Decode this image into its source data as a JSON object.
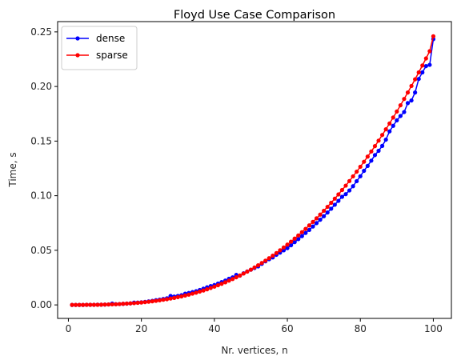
{
  "chart_data": {
    "type": "line",
    "title": "Floyd Use Case Comparison",
    "xlabel": "Nr. vertices, n",
    "ylabel": "Time, s",
    "xlim": [
      -2.95,
      104.95
    ],
    "ylim": [
      -0.01236,
      0.25942
    ],
    "xticks": [
      0,
      20,
      40,
      60,
      80,
      100
    ],
    "yticks": [
      0.0,
      0.05,
      0.1,
      0.15,
      0.2,
      0.25
    ],
    "xtick_labels": [
      "0",
      "20",
      "40",
      "60",
      "80",
      "100"
    ],
    "ytick_labels": [
      "0.00",
      "0.05",
      "0.10",
      "0.15",
      "0.20",
      "0.25"
    ],
    "legend_position": "upper-left",
    "grid": false,
    "x": [
      1,
      2,
      3,
      4,
      5,
      6,
      7,
      8,
      9,
      10,
      11,
      12,
      13,
      14,
      15,
      16,
      17,
      18,
      19,
      20,
      21,
      22,
      23,
      24,
      25,
      26,
      27,
      28,
      29,
      30,
      31,
      32,
      33,
      34,
      35,
      36,
      37,
      38,
      39,
      40,
      41,
      42,
      43,
      44,
      45,
      46,
      47,
      48,
      49,
      50,
      51,
      52,
      53,
      54,
      55,
      56,
      57,
      58,
      59,
      60,
      61,
      62,
      63,
      64,
      65,
      66,
      67,
      68,
      69,
      70,
      71,
      72,
      73,
      74,
      75,
      76,
      77,
      78,
      79,
      80,
      81,
      82,
      83,
      84,
      85,
      86,
      87,
      88,
      89,
      90,
      91,
      92,
      93,
      94,
      95,
      96,
      97,
      98,
      99,
      100
    ],
    "series": [
      {
        "name": "dense",
        "color": "#0000ff",
        "values": [
          0.0,
          0.0,
          0.0,
          0.0,
          0.0001,
          0.0001,
          0.0001,
          0.0002,
          0.0002,
          0.0003,
          0.0004,
          0.0012,
          0.0007,
          0.0008,
          0.001,
          0.0012,
          0.0014,
          0.0021,
          0.0021,
          0.0024,
          0.0028,
          0.0032,
          0.0037,
          0.0043,
          0.0048,
          0.0054,
          0.0061,
          0.0082,
          0.0076,
          0.0082,
          0.0089,
          0.0103,
          0.0109,
          0.0117,
          0.0126,
          0.0137,
          0.0149,
          0.0161,
          0.0172,
          0.0182,
          0.0195,
          0.0209,
          0.0223,
          0.0239,
          0.0252,
          0.0275,
          0.0268,
          0.029,
          0.0306,
          0.0322,
          0.0338,
          0.0352,
          0.0376,
          0.0399,
          0.0418,
          0.0435,
          0.0459,
          0.0479,
          0.05,
          0.052,
          0.0546,
          0.0575,
          0.0602,
          0.063,
          0.0659,
          0.0687,
          0.0718,
          0.0749,
          0.078,
          0.0812,
          0.0846,
          0.0881,
          0.0917,
          0.0953,
          0.099,
          0.1014,
          0.1048,
          0.1087,
          0.1133,
          0.1178,
          0.1228,
          0.1273,
          0.1321,
          0.1372,
          0.1411,
          0.1456,
          0.1513,
          0.1589,
          0.164,
          0.169,
          0.173,
          0.1766,
          0.1848,
          0.1872,
          0.1945,
          0.2069,
          0.2129,
          0.2187,
          0.2198,
          0.2434
        ]
      },
      {
        "name": "sparse",
        "color": "#ff0000",
        "values": [
          0.0,
          0.0,
          0.0,
          0.0,
          0.0001,
          0.0001,
          0.0001,
          0.0001,
          0.0002,
          0.0003,
          0.0004,
          0.0005,
          0.0006,
          0.0008,
          0.001,
          0.0012,
          0.0014,
          0.0016,
          0.0019,
          0.0022,
          0.0025,
          0.0029,
          0.0033,
          0.0037,
          0.0042,
          0.0047,
          0.0052,
          0.0058,
          0.0064,
          0.0071,
          0.0078,
          0.0086,
          0.0094,
          0.0103,
          0.0112,
          0.0122,
          0.0132,
          0.0143,
          0.0155,
          0.0167,
          0.018,
          0.0193,
          0.0207,
          0.0222,
          0.0237,
          0.0253,
          0.0269,
          0.0287,
          0.0305,
          0.0323,
          0.0343,
          0.0363,
          0.0384,
          0.0405,
          0.0428,
          0.0451,
          0.0475,
          0.05,
          0.0526,
          0.0552,
          0.0579,
          0.0607,
          0.0636,
          0.0666,
          0.0696,
          0.0728,
          0.076,
          0.0793,
          0.0827,
          0.0862,
          0.0898,
          0.0935,
          0.0973,
          0.1012,
          0.1052,
          0.1092,
          0.1134,
          0.1177,
          0.122,
          0.1265,
          0.1311,
          0.1358,
          0.1405,
          0.1454,
          0.1504,
          0.1556,
          0.1608,
          0.1661,
          0.1716,
          0.1771,
          0.1828,
          0.1886,
          0.1945,
          0.2005,
          0.2066,
          0.2129,
          0.2192,
          0.2257,
          0.2323,
          0.246
        ]
      }
    ]
  }
}
